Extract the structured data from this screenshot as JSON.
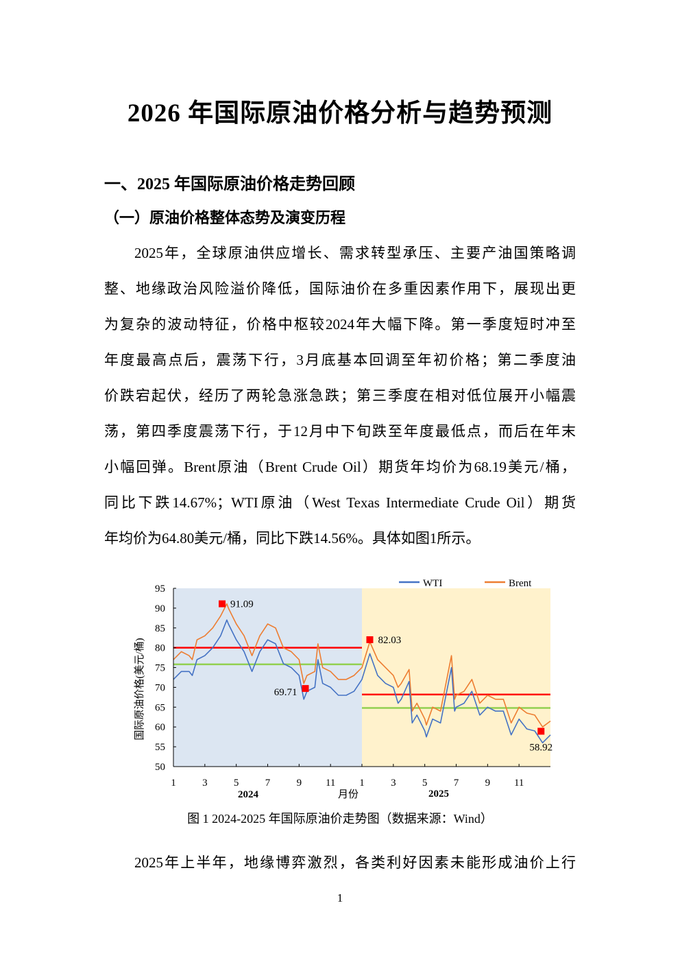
{
  "title": "2026 年国际原油价格分析与趋势预测",
  "section1": "一、2025 年国际原油价格走势回顾",
  "subsection1": "（一）原油价格整体态势及演变历程",
  "paragraph1_lines": [
    "2025年，全球原油供应增长、需求转型承压、主要产油国策略调",
    "整、地缘政治风险溢价降低，国际油价在多重因素作用下，展现出更",
    "为复杂的波动特征，价格中枢较2024年大幅下降。第一季度短时冲至",
    "年度最高点后，震荡下行，3月底基本回调至年初价格；第二季度油",
    "价跌宕起伏，经历了两轮急涨急跌；第三季度在相对低位展开小幅震",
    "荡，第四季度震荡下行，于12月中下旬跌至年度最低点，而后在年末",
    "小幅回弹。Brent原油（Brent Crude Oil）期货年均价为68.19美元/桶，",
    "同比下跌14.67%；WTI原油（West Texas Intermediate Crude Oil）期货",
    "年均价为64.80美元/桶，同比下跌14.56%。具体如图1所示。"
  ],
  "caption": "图 1 2024-2025 年国际原油价走势图（数据来源：Wind）",
  "paragraph2_first_line": "2025年上半年，地缘博弈激烈，各类利好因素未能形成油价上行",
  "page_number": "1",
  "chart_data": {
    "type": "line",
    "ylabel": "国际原油价格(美元/桶)",
    "xlabel": "月份",
    "year_labels": [
      "2024",
      "2025"
    ],
    "x_tick_labels": [
      "1",
      "3",
      "5",
      "7",
      "9",
      "11",
      "1",
      "3",
      "5",
      "7",
      "9",
      "11"
    ],
    "x_tick_months": [
      0,
      2,
      4,
      6,
      8,
      10,
      12,
      14,
      16,
      18,
      20,
      22
    ],
    "xlim": [
      0,
      24
    ],
    "ylim": [
      50,
      95
    ],
    "y_ticks": [
      50,
      55,
      60,
      65,
      70,
      75,
      80,
      85,
      90,
      95
    ],
    "legend": [
      "WTI",
      "Brent"
    ],
    "legend_position": "top-right",
    "colors": {
      "WTI": "#4472C4",
      "Brent": "#ED7D31",
      "brent_avg": "#FF0000",
      "wti_avg": "#92D050",
      "marker": "#FF0000",
      "bg2024": "#DCE6F2",
      "bg2025": "#FFF2CC"
    },
    "series": [
      {
        "name": "Brent",
        "x": [
          0,
          0.5,
          1,
          1.2,
          1.5,
          2,
          2.5,
          3,
          3.4,
          3.5,
          4,
          4.5,
          5,
          5.5,
          6,
          6.5,
          7,
          7.5,
          8,
          8.3,
          8.5,
          9,
          9.2,
          9.5,
          10,
          10.5,
          11,
          11.5,
          12,
          12.5,
          13,
          13.5,
          14,
          14.3,
          14.5,
          15,
          15.2,
          15.5,
          16,
          16.1,
          16.5,
          17,
          17.5,
          17.7,
          17.9,
          18,
          18.5,
          19,
          19.5,
          20,
          20.5,
          21,
          21.5,
          22,
          22.5,
          23,
          23.5,
          24
        ],
        "values": [
          77,
          79,
          78,
          77,
          82,
          83,
          85,
          88,
          91.09,
          90,
          86,
          83,
          78,
          83,
          86,
          85,
          80,
          79,
          77,
          71,
          73,
          74,
          81,
          75,
          74,
          72,
          72,
          73,
          75,
          81.5,
          77,
          75,
          73,
          70,
          71,
          74.5,
          64,
          66,
          62,
          60.5,
          65,
          64,
          74,
          78,
          67,
          68,
          69,
          72,
          66,
          68,
          67,
          67,
          61,
          65,
          63.5,
          63,
          60,
          61.5
        ]
      },
      {
        "name": "WTI",
        "x": [
          0,
          0.5,
          1,
          1.2,
          1.5,
          2,
          2.5,
          3,
          3.4,
          3.5,
          4,
          4.5,
          5,
          5.5,
          6,
          6.5,
          7,
          7.5,
          8,
          8.3,
          8.5,
          9,
          9.2,
          9.5,
          10,
          10.5,
          11,
          11.5,
          12,
          12.5,
          13,
          13.5,
          14,
          14.3,
          14.5,
          15,
          15.2,
          15.5,
          16,
          16.1,
          16.5,
          17,
          17.5,
          17.7,
          17.9,
          18,
          18.5,
          19,
          19.5,
          20,
          20.5,
          21,
          21.5,
          22,
          22.5,
          23,
          23.5,
          24
        ],
        "values": [
          72,
          74,
          74,
          73,
          77,
          78,
          80,
          83,
          87,
          86,
          82,
          79,
          74,
          79,
          82,
          81,
          76,
          75,
          73,
          67,
          69,
          70,
          77,
          71,
          70,
          68,
          68,
          69,
          72,
          78.5,
          73,
          71,
          70,
          66,
          67,
          71.5,
          61,
          63,
          59,
          57.5,
          62,
          61,
          71,
          75,
          64,
          65,
          66,
          69,
          63,
          65,
          64,
          64,
          58,
          62,
          59.5,
          59,
          56,
          58
        ]
      }
    ],
    "averages": [
      {
        "name": "Brent average 2024",
        "value": 80.0,
        "range": [
          0,
          12
        ]
      },
      {
        "name": "WTI average 2024",
        "value": 75.8,
        "range": [
          0,
          12
        ]
      },
      {
        "name": "Brent average 2025",
        "value": 68.19,
        "range": [
          12,
          24
        ]
      },
      {
        "name": "WTI average 2025",
        "value": 64.8,
        "range": [
          12,
          24
        ]
      }
    ],
    "annotations": [
      {
        "x": 3.1,
        "y": 91.09,
        "label": "91.09",
        "side": "right"
      },
      {
        "x": 8.4,
        "y": 69.71,
        "label": "69.71",
        "side": "left"
      },
      {
        "x": 12.5,
        "y": 82.03,
        "label": "82.03",
        "side": "right"
      },
      {
        "x": 23.4,
        "y": 58.92,
        "label": "58.92",
        "side": "below"
      }
    ]
  }
}
